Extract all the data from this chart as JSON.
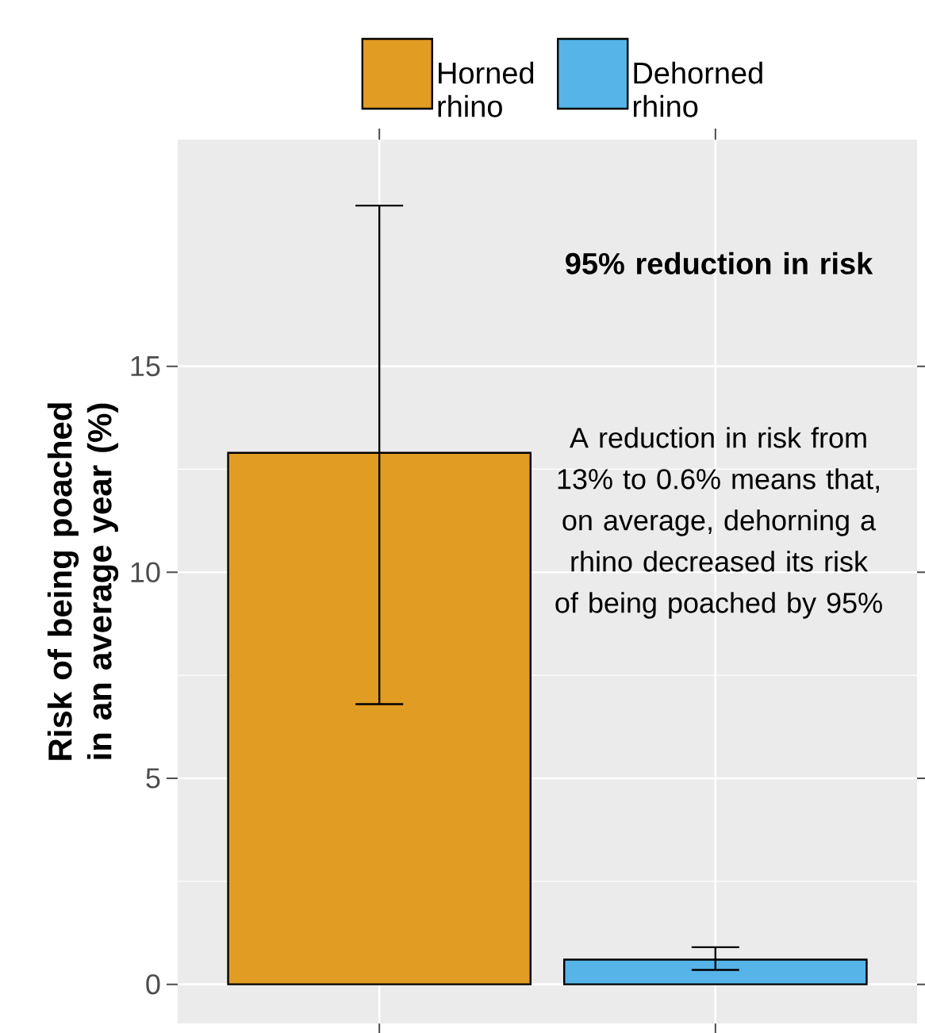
{
  "chart_data": {
    "type": "bar",
    "ylabel": "Risk of being poached in an average year (%)",
    "categories": [
      null,
      null
    ],
    "series": [
      {
        "name": "Horned rhino",
        "color": "#e19c24",
        "values": [
          12.9,
          null
        ],
        "errors": [
          [
            6.8,
            18.9
          ],
          null
        ]
      },
      {
        "name": "Dehorned rhino",
        "color": "#56b4e9",
        "values": [
          null,
          0.6
        ],
        "errors": [
          null,
          [
            0.35,
            0.9
          ]
        ]
      }
    ],
    "ylim": [
      -0.95,
      20.5
    ],
    "yticks": [
      0,
      5,
      10,
      15
    ],
    "grid": true,
    "legend": "top",
    "tick_labels": "y",
    "annotations": [
      "95% reduction in risk",
      "A reduction in risk from 13% to 0.6% means that, on average, dehorning a rhino decreased its risk of being poached by 95%"
    ]
  }
}
